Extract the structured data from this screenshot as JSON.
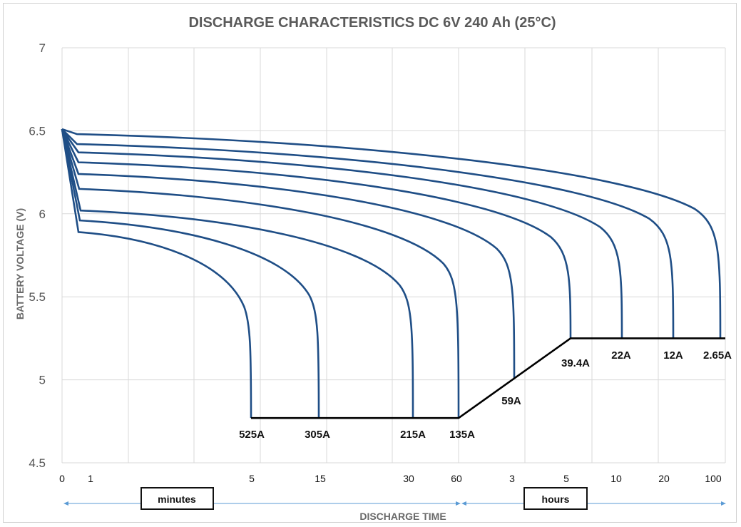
{
  "chart_data": {
    "type": "line",
    "title": "DISCHARGE CHARACTERISTICS DC 6V 240 Ah (25°C)",
    "ylabel": "BATTERY VOLTAGE (V)",
    "xlabel": "DISCHARGE TIME",
    "ylim": [
      4.5,
      7
    ],
    "yticks": [
      "4.5",
      "5",
      "5.5",
      "6",
      "6.5",
      "7"
    ],
    "x_tick_labels": [
      "0",
      "1",
      "5",
      "15",
      "30",
      "60",
      "3",
      "5",
      "10",
      "20",
      "100"
    ],
    "x_units": {
      "minutes": "minutes",
      "hours": "hours"
    },
    "grid": "vertical and horizontal",
    "start_voltage": 6.51,
    "series": [
      {
        "name": "525A",
        "end_time": "~8.5 min",
        "end_voltage": 4.77,
        "knee_voltage": 5.89
      },
      {
        "name": "305A",
        "end_time": "~15 min",
        "end_voltage": 4.77,
        "knee_voltage": 5.96
      },
      {
        "name": "215A",
        "end_time": "~32 min",
        "end_voltage": 4.77,
        "knee_voltage": 6.02
      },
      {
        "name": "135A",
        "end_time": "60 min",
        "end_voltage": 4.77,
        "knee_voltage": 6.15
      },
      {
        "name": "59A",
        "end_time": "~2.9 h",
        "end_voltage": 5.01,
        "knee_voltage": 6.24
      },
      {
        "name": "39.4A",
        "end_time": "5 h",
        "end_voltage": 5.25,
        "knee_voltage": 6.31
      },
      {
        "name": "22A",
        "end_time": "~8.5 h",
        "end_voltage": 5.25,
        "knee_voltage": 6.37
      },
      {
        "name": "12A",
        "end_time": "20 h",
        "end_voltage": 5.25,
        "knee_voltage": 6.42
      },
      {
        "name": "2.65A",
        "end_time": "~100 h",
        "end_voltage": 5.25,
        "knee_voltage": 6.48
      }
    ],
    "cutoff_voltage": [
      {
        "time": "~8.5 min",
        "voltage": 4.77
      },
      {
        "time": "60 min",
        "voltage": 4.77
      },
      {
        "time": "5 h",
        "voltage": 5.25
      },
      {
        "time": "100 h",
        "voltage": 5.25
      }
    ],
    "colors": {
      "curve": "#1f4e86",
      "cutoff": "#000000",
      "grid": "#d9d9d9",
      "arrow": "#5b9bd5"
    }
  }
}
